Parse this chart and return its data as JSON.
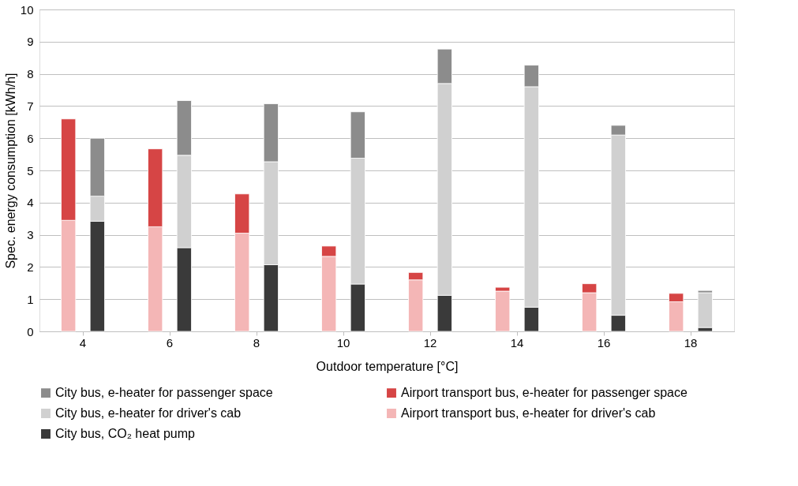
{
  "chart_data": [
    {
      "type": "bar",
      "stacked": true,
      "categories": [
        "4",
        "6",
        "8",
        "10",
        "12",
        "14",
        "16",
        "18"
      ],
      "series": [
        {
          "name": "Airport transport bus, e-heater for driver's cab",
          "color": "#f4b6b6",
          "values": [
            3.45,
            3.25,
            3.05,
            2.33,
            1.6,
            1.25,
            1.2,
            0.92
          ]
        },
        {
          "name": "Airport transport bus, e-heater for passenger space",
          "color": "#d64545",
          "values": [
            3.15,
            2.42,
            1.22,
            0.32,
            0.23,
            0.12,
            0.28,
            0.26
          ]
        }
      ],
      "ylim": [
        0,
        10
      ],
      "yticks": [
        0,
        1,
        2,
        3,
        4,
        5,
        6,
        7,
        8,
        9,
        10
      ],
      "tick_labels": false,
      "grid": "y",
      "legend": "bottom"
    },
    {
      "type": "bar",
      "stacked": true,
      "xlabel": "Outdoor temperature [°C]",
      "ylabel": "Spec. energy consumption [kWh/h]",
      "categories": [
        "4",
        "6",
        "8",
        "10",
        "12",
        "14",
        "16",
        "18"
      ],
      "series": [
        {
          "name": "City bus, CO₂ heat pump",
          "color": "#3a3a3a",
          "values": [
            3.42,
            2.6,
            2.07,
            1.47,
            1.12,
            0.75,
            0.5,
            0.12
          ]
        },
        {
          "name": "City bus, e-heater for driver's cab",
          "color": "#d0d0d0",
          "values": [
            0.78,
            2.87,
            3.2,
            3.91,
            6.58,
            6.85,
            5.6,
            1.08
          ]
        },
        {
          "name": "City bus, e-heater for passenger space",
          "color": "#8c8c8c",
          "values": [
            1.8,
            1.7,
            1.8,
            1.44,
            1.07,
            0.67,
            0.3,
            0.07
          ]
        }
      ],
      "ylim": [
        0,
        10
      ],
      "yticks": [
        0,
        1,
        2,
        3,
        4,
        5,
        6,
        7,
        8,
        9,
        10
      ],
      "grid": "y",
      "legend": "bottom"
    }
  ]
}
